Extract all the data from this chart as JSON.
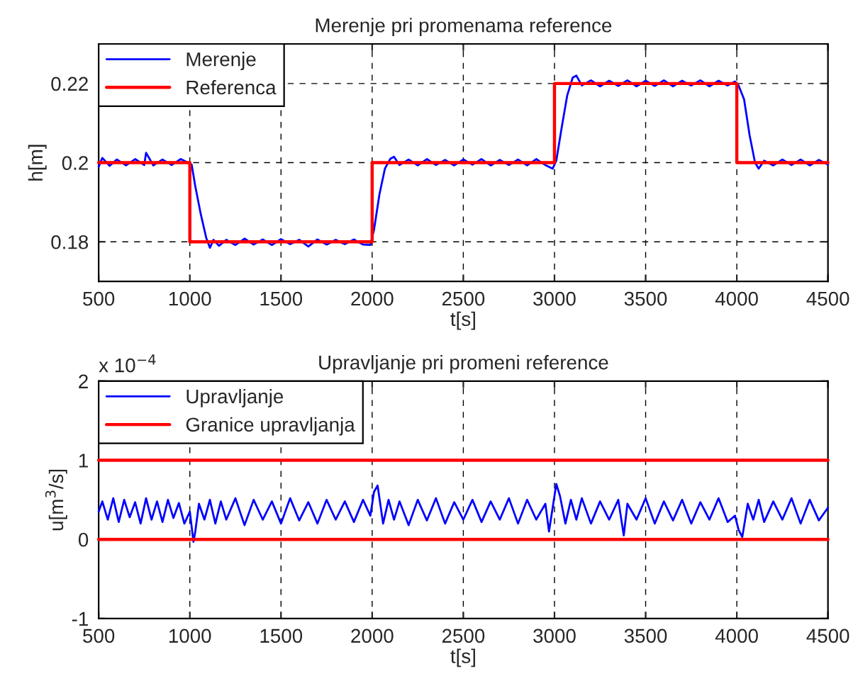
{
  "chart_data": [
    {
      "type": "line",
      "title": "Merenje pri promenama reference",
      "xlabel": "t[s]",
      "ylabel": "h[m]",
      "xlim": [
        500,
        4500
      ],
      "xticks": [
        500,
        1000,
        1500,
        2000,
        2500,
        3000,
        3500,
        4000,
        4500
      ],
      "ylim": [
        0.17,
        0.23
      ],
      "yticks": [
        0.18,
        0.2,
        0.22
      ],
      "grid": true,
      "legend": "top left",
      "line_style": "solid",
      "marker": "none",
      "series": [
        {
          "name": "Merenje",
          "color": "#0000ff",
          "x": [
            500,
            520,
            560,
            600,
            650,
            700,
            750,
            760,
            800,
            850,
            900,
            950,
            990,
            1010,
            1030,
            1060,
            1090,
            1110,
            1130,
            1160,
            1200,
            1250,
            1300,
            1350,
            1400,
            1450,
            1500,
            1550,
            1600,
            1650,
            1700,
            1750,
            1800,
            1850,
            1900,
            1950,
            1990,
            2010,
            2040,
            2070,
            2100,
            2120,
            2150,
            2200,
            2250,
            2300,
            2350,
            2400,
            2450,
            2500,
            2550,
            2600,
            2650,
            2700,
            2750,
            2800,
            2850,
            2900,
            2950,
            2990,
            3010,
            3040,
            3070,
            3100,
            3120,
            3150,
            3200,
            3250,
            3300,
            3350,
            3400,
            3450,
            3500,
            3550,
            3600,
            3650,
            3700,
            3750,
            3800,
            3850,
            3900,
            3950,
            3990,
            4010,
            4040,
            4070,
            4100,
            4120,
            4150,
            4200,
            4250,
            4300,
            4350,
            4400,
            4450,
            4500
          ],
          "values": [
            0.199,
            0.2012,
            0.1992,
            0.2008,
            0.1993,
            0.2009,
            0.1994,
            0.2025,
            0.1993,
            0.2008,
            0.1994,
            0.2009,
            0.2,
            0.1995,
            0.194,
            0.187,
            0.181,
            0.1785,
            0.1805,
            0.179,
            0.1805,
            0.1792,
            0.1808,
            0.1793,
            0.1806,
            0.1792,
            0.1807,
            0.1794,
            0.1805,
            0.1788,
            0.1806,
            0.1793,
            0.1805,
            0.1794,
            0.1806,
            0.1793,
            0.1792,
            0.183,
            0.192,
            0.1985,
            0.201,
            0.2015,
            0.1994,
            0.2008,
            0.1993,
            0.2009,
            0.1994,
            0.2007,
            0.1993,
            0.2008,
            0.1995,
            0.2009,
            0.1993,
            0.2007,
            0.1994,
            0.2008,
            0.1993,
            0.2009,
            0.1994,
            0.1985,
            0.2005,
            0.209,
            0.217,
            0.2215,
            0.222,
            0.2195,
            0.2208,
            0.2193,
            0.2207,
            0.2194,
            0.2208,
            0.2193,
            0.2207,
            0.2194,
            0.2208,
            0.2193,
            0.2207,
            0.2195,
            0.2208,
            0.2193,
            0.2207,
            0.2195,
            0.2205,
            0.2195,
            0.216,
            0.207,
            0.2,
            0.1985,
            0.2005,
            0.1993,
            0.2008,
            0.1994,
            0.2008,
            0.1993,
            0.2007,
            0.1995
          ]
        },
        {
          "name": "Referenca",
          "color": "#ff0000",
          "x": [
            500,
            1000,
            1000,
            2000,
            2000,
            3000,
            3000,
            4000,
            4000,
            4500
          ],
          "values": [
            0.2,
            0.2,
            0.18,
            0.18,
            0.2,
            0.2,
            0.22,
            0.22,
            0.2,
            0.2
          ]
        }
      ]
    },
    {
      "type": "line",
      "title": "Upravljanje pri promeni reference",
      "xlabel": "t[s]",
      "ylabel": "u[m$^{3}$/s]",
      "annotations": [
        "x 10$^{−4}$"
      ],
      "xlim": [
        500,
        4500
      ],
      "xticks": [
        500,
        1000,
        1500,
        2000,
        2500,
        3000,
        3500,
        4000,
        4500
      ],
      "ylim": [
        -1,
        2
      ],
      "yticks": [
        -1,
        0,
        1,
        2
      ],
      "grid": true,
      "legend": "top left",
      "line_style": "solid",
      "marker": "none",
      "series": [
        {
          "name": "Upravljanje",
          "color": "#0000ff",
          "x": [
            500,
            520,
            550,
            580,
            610,
            640,
            670,
            700,
            730,
            760,
            790,
            820,
            850,
            880,
            910,
            940,
            970,
            1000,
            1020,
            1030,
            1050,
            1080,
            1110,
            1140,
            1170,
            1200,
            1250,
            1300,
            1350,
            1400,
            1450,
            1500,
            1550,
            1600,
            1650,
            1700,
            1750,
            1800,
            1850,
            1900,
            1950,
            1990,
            2010,
            2030,
            2060,
            2090,
            2120,
            2150,
            2200,
            2250,
            2300,
            2350,
            2400,
            2450,
            2500,
            2550,
            2600,
            2650,
            2700,
            2750,
            2800,
            2850,
            2900,
            2950,
            2970,
            2990,
            3010,
            3030,
            3060,
            3090,
            3120,
            3150,
            3200,
            3250,
            3300,
            3350,
            3380,
            3400,
            3450,
            3500,
            3550,
            3600,
            3650,
            3700,
            3750,
            3800,
            3850,
            3900,
            3950,
            3990,
            4010,
            4030,
            4060,
            4090,
            4120,
            4150,
            4200,
            4250,
            4300,
            4350,
            4400,
            4450,
            4500
          ],
          "values": [
            0.35,
            0.48,
            0.25,
            0.52,
            0.22,
            0.5,
            0.28,
            0.47,
            0.2,
            0.52,
            0.25,
            0.48,
            0.22,
            0.5,
            0.27,
            0.46,
            0.2,
            0.35,
            -0.03,
            0.1,
            0.45,
            0.25,
            0.5,
            0.2,
            0.48,
            0.25,
            0.52,
            0.18,
            0.5,
            0.25,
            0.48,
            0.2,
            0.52,
            0.24,
            0.47,
            0.2,
            0.5,
            0.25,
            0.48,
            0.22,
            0.5,
            0.3,
            0.6,
            0.68,
            0.2,
            0.5,
            0.25,
            0.48,
            0.18,
            0.5,
            0.24,
            0.52,
            0.2,
            0.47,
            0.25,
            0.5,
            0.22,
            0.48,
            0.25,
            0.52,
            0.2,
            0.5,
            0.25,
            0.45,
            0.1,
            0.4,
            0.7,
            0.55,
            0.2,
            0.5,
            0.25,
            0.52,
            0.2,
            0.48,
            0.25,
            0.5,
            0.05,
            0.45,
            0.25,
            0.52,
            0.2,
            0.48,
            0.24,
            0.5,
            0.2,
            0.47,
            0.25,
            0.52,
            0.22,
            0.3,
            0.12,
            0.03,
            0.45,
            0.25,
            0.5,
            0.22,
            0.48,
            0.25,
            0.52,
            0.2,
            0.5,
            0.24,
            0.4
          ]
        },
        {
          "name": "Granice upravljanja",
          "color": "#ff0000",
          "x": [
            500,
            4500
          ],
          "values": [
            1,
            1
          ]
        },
        {
          "color": "#ff0000",
          "x": [
            500,
            4500
          ],
          "values": [
            0,
            0
          ]
        }
      ]
    }
  ]
}
